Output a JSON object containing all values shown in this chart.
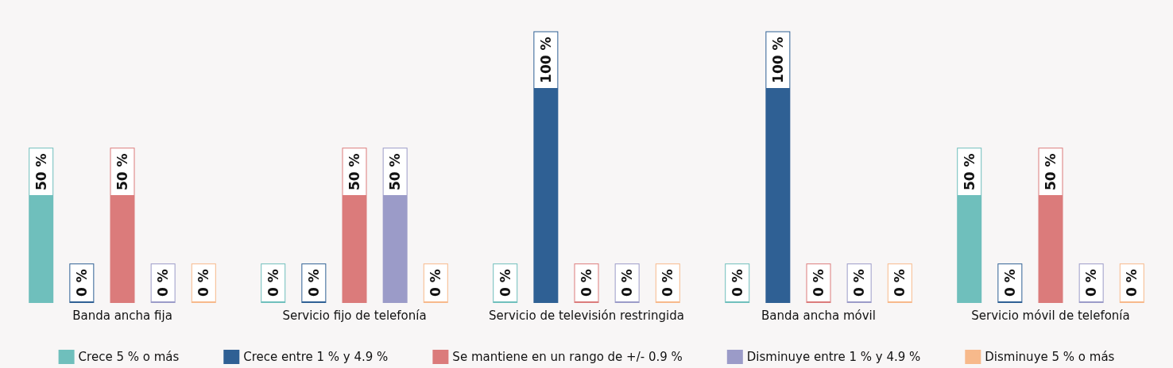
{
  "chart_data": {
    "type": "bar",
    "categories": [
      "Banda ancha fija",
      "Servicio fijo de telefonía",
      "Servicio de televisión restringida",
      "Banda ancha móvil",
      "Servicio móvil de telefonía"
    ],
    "series": [
      {
        "name": "Crece 5 % o más",
        "color": "#6fbfbc",
        "values": [
          50,
          0,
          0,
          0,
          50
        ],
        "value_labels": [
          "50 %",
          "0 %",
          "0 %",
          "0 %",
          "50 %"
        ]
      },
      {
        "name": "Crece entre 1 % y 4.9 %",
        "color": "#2f6094",
        "values": [
          0,
          0,
          100,
          100,
          0
        ],
        "value_labels": [
          "0 %",
          "0 %",
          "100 %",
          "100 %",
          "0 %"
        ]
      },
      {
        "name": "Se mantiene en un rango de +/- 0.9 %",
        "color": "#db7b7b",
        "values": [
          50,
          50,
          0,
          0,
          50
        ],
        "value_labels": [
          "50 %",
          "50 %",
          "0 %",
          "0 %",
          "50 %"
        ]
      },
      {
        "name": "Disminuye entre 1 % y 4.9 %",
        "color": "#9b9bc8",
        "values": [
          0,
          50,
          0,
          0,
          0
        ],
        "value_labels": [
          "0 %",
          "50 %",
          "0 %",
          "0 %",
          "0 %"
        ]
      },
      {
        "name": "Disminuye 5 % o más",
        "color": "#f7b98b",
        "values": [
          0,
          0,
          0,
          0,
          0
        ],
        "value_labels": [
          "0 %",
          "0 %",
          "0 %",
          "0 %",
          "0 %"
        ]
      }
    ],
    "legend": "bottom",
    "tick_labels": "x",
    "grid": false
  }
}
